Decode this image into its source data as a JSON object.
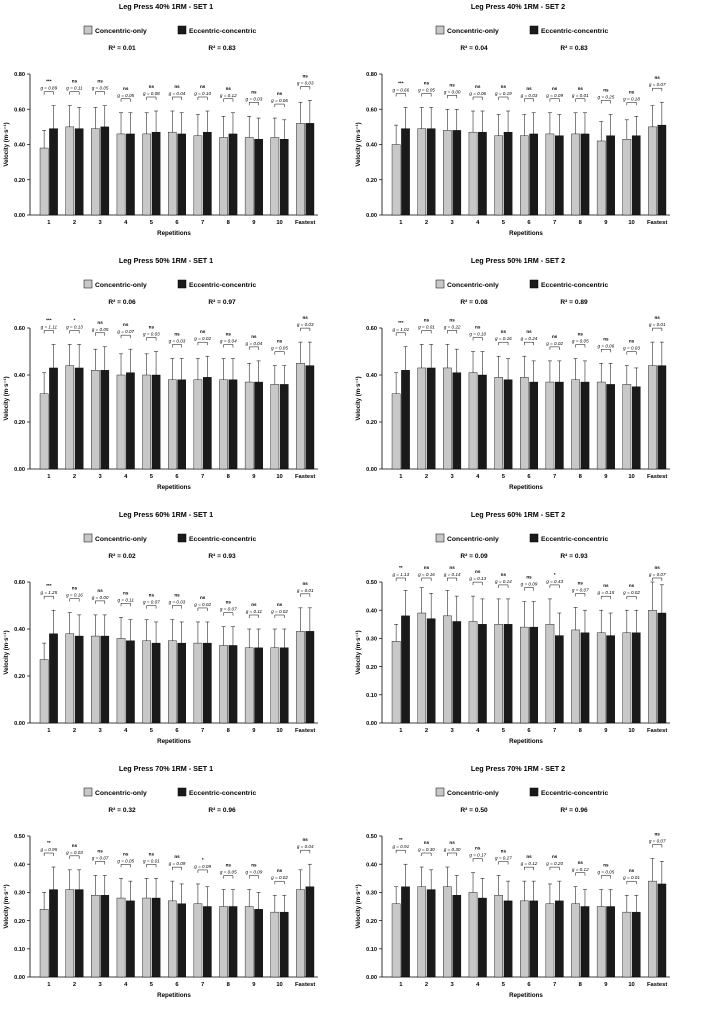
{
  "legend_labels": {
    "concentric": "Concentric-only",
    "eccentric": "Eccentric-concentric"
  },
  "colors": {
    "concentric": "#c8c8c8",
    "eccentric": "#1a1a1a",
    "axis": "#000000"
  },
  "chart_data": [
    {
      "type": "bar",
      "title": "Leg Press 40% 1RM - SET 1",
      "xlabel": "Repetitions",
      "ylabel": "Velocity (m·s⁻¹)",
      "r2_concentric": "R² = 0.01",
      "r2_eccentric": "R² = 0.83",
      "ylim": [
        0,
        0.8
      ],
      "yticks": [
        "0.00",
        "0.20",
        "0.40",
        "0.60",
        "0.80"
      ],
      "categories": [
        "1",
        "2",
        "3",
        "4",
        "5",
        "6",
        "7",
        "8",
        "9",
        "10",
        "Fastest"
      ],
      "series": [
        {
          "name": "Concentric-only",
          "values": [
            0.38,
            0.5,
            0.49,
            0.46,
            0.46,
            0.47,
            0.45,
            0.44,
            0.44,
            0.44,
            0.52
          ],
          "errors": [
            0.1,
            0.12,
            0.12,
            0.12,
            0.12,
            0.12,
            0.12,
            0.12,
            0.12,
            0.11,
            0.12
          ]
        },
        {
          "name": "Eccentric-concentric",
          "values": [
            0.49,
            0.49,
            0.5,
            0.46,
            0.47,
            0.46,
            0.47,
            0.46,
            0.43,
            0.43,
            0.52
          ],
          "errors": [
            0.13,
            0.12,
            0.12,
            0.12,
            0.12,
            0.12,
            0.12,
            0.12,
            0.12,
            0.11,
            0.13
          ]
        }
      ],
      "significance": [
        "***",
        "ns",
        "ns",
        "ns",
        "ns",
        "ns",
        "ns",
        "ns",
        "ns",
        "ns",
        "ns"
      ],
      "effect_sizes": [
        "g = 0.89",
        "g = 0.11",
        "g = 0.05",
        "g = 0.05",
        "g = 0.08",
        "g = 0.04",
        "g = 0.10",
        "g = 0.12",
        "g = 0.03",
        "g = 0.06",
        "g = 0.03"
      ]
    },
    {
      "type": "bar",
      "title": "Leg Press 40% 1RM - SET 2",
      "xlabel": "Repetitions",
      "ylabel": "Velocity (m·s⁻¹)",
      "r2_concentric": "R² = 0.04",
      "r2_eccentric": "R² = 0.83",
      "ylim": [
        0,
        0.8
      ],
      "yticks": [
        "0.00",
        "0.20",
        "0.40",
        "0.60",
        "0.80"
      ],
      "categories": [
        "1",
        "2",
        "3",
        "4",
        "5",
        "6",
        "7",
        "8",
        "9",
        "10",
        "Fastest"
      ],
      "series": [
        {
          "name": "Concentric-only",
          "values": [
            0.4,
            0.49,
            0.48,
            0.47,
            0.45,
            0.45,
            0.46,
            0.46,
            0.42,
            0.43,
            0.5
          ],
          "errors": [
            0.11,
            0.12,
            0.12,
            0.12,
            0.12,
            0.12,
            0.12,
            0.12,
            0.11,
            0.11,
            0.12
          ]
        },
        {
          "name": "Eccentric-concentric",
          "values": [
            0.49,
            0.49,
            0.48,
            0.47,
            0.47,
            0.46,
            0.45,
            0.46,
            0.45,
            0.45,
            0.51
          ],
          "errors": [
            0.12,
            0.12,
            0.12,
            0.12,
            0.12,
            0.12,
            0.12,
            0.12,
            0.12,
            0.11,
            0.13
          ]
        }
      ],
      "significance": [
        "***",
        "ns",
        "ns",
        "ns",
        "ns",
        "ns",
        "ns",
        "ns",
        "ns",
        "ns",
        "ns"
      ],
      "effect_sizes": [
        "g = 0.66",
        "g = 0.05",
        "g = 0.00",
        "g = 0.06",
        "g = 0.19",
        "g = 0.03",
        "g = 0.09",
        "g = 0.01",
        "g = 0.25",
        "g = 0.18",
        "g = 0.07"
      ]
    },
    {
      "type": "bar",
      "title": "Leg Press 50% 1RM - SET 1",
      "xlabel": "Repetitions",
      "ylabel": "Velocity (m·s⁻¹)",
      "r2_concentric": "R² = 0.06",
      "r2_eccentric": "R² = 0.97",
      "ylim": [
        0,
        0.6
      ],
      "yticks": [
        "0.00",
        "0.20",
        "0.40",
        "0.60"
      ],
      "categories": [
        "1",
        "2",
        "3",
        "4",
        "5",
        "6",
        "7",
        "8",
        "9",
        "10",
        "Fastest"
      ],
      "series": [
        {
          "name": "Concentric-only",
          "values": [
            0.32,
            0.44,
            0.42,
            0.4,
            0.4,
            0.38,
            0.38,
            0.38,
            0.37,
            0.36,
            0.45
          ],
          "errors": [
            0.09,
            0.09,
            0.09,
            0.09,
            0.09,
            0.09,
            0.09,
            0.09,
            0.08,
            0.08,
            0.09
          ]
        },
        {
          "name": "Eccentric-concentric",
          "values": [
            0.43,
            0.43,
            0.42,
            0.41,
            0.4,
            0.38,
            0.39,
            0.38,
            0.37,
            0.36,
            0.44
          ],
          "errors": [
            0.1,
            0.1,
            0.1,
            0.1,
            0.1,
            0.09,
            0.09,
            0.09,
            0.09,
            0.08,
            0.1
          ]
        }
      ],
      "significance": [
        "***",
        "*",
        "ns",
        "ns",
        "ns",
        "ns",
        "ns",
        "ns",
        "ns",
        "ns",
        "ns"
      ],
      "effect_sizes": [
        "g = 1.11",
        "g = 0.13",
        "g = 0.05",
        "g = 0.07",
        "g = 0.03",
        "g = 0.03",
        "g = 0.02",
        "g = 0.04",
        "g = 0.04",
        "g = 0.05",
        "g = 0.03"
      ]
    },
    {
      "type": "bar",
      "title": "Leg Press 50% 1RM - SET 2",
      "xlabel": "Repetitions",
      "ylabel": "Velocity (m·s⁻¹)",
      "r2_concentric": "R² = 0.08",
      "r2_eccentric": "R² = 0.89",
      "ylim": [
        0,
        0.6
      ],
      "yticks": [
        "0.00",
        "0.20",
        "0.40",
        "0.60"
      ],
      "categories": [
        "1",
        "2",
        "3",
        "4",
        "5",
        "6",
        "7",
        "8",
        "9",
        "10",
        "Fastest"
      ],
      "series": [
        {
          "name": "Concentric-only",
          "values": [
            0.32,
            0.43,
            0.43,
            0.41,
            0.39,
            0.39,
            0.37,
            0.38,
            0.37,
            0.36,
            0.44
          ],
          "errors": [
            0.09,
            0.1,
            0.1,
            0.09,
            0.09,
            0.09,
            0.09,
            0.09,
            0.08,
            0.08,
            0.1
          ]
        },
        {
          "name": "Eccentric-concentric",
          "values": [
            0.42,
            0.43,
            0.41,
            0.4,
            0.38,
            0.37,
            0.37,
            0.37,
            0.36,
            0.35,
            0.44
          ],
          "errors": [
            0.1,
            0.1,
            0.1,
            0.1,
            0.09,
            0.09,
            0.09,
            0.09,
            0.09,
            0.08,
            0.1
          ]
        }
      ],
      "significance": [
        "***",
        "ns",
        "ns",
        "ns",
        "ns",
        "ns",
        "ns",
        "ns",
        "ns",
        "ns",
        "ns"
      ],
      "effect_sizes": [
        "g = 1.01",
        "g = 0.01",
        "g = 0.22",
        "g = 0.10",
        "g = 0.16",
        "g = 0.24",
        "g = 0.02",
        "g = 0.05",
        "g = 0.06",
        "g = 0.03",
        "g = 0.01"
      ]
    },
    {
      "type": "bar",
      "title": "Leg Press 60% 1RM - SET 1",
      "xlabel": "Repetitions",
      "ylabel": "Velocity (m·s⁻¹)",
      "r2_concentric": "R² = 0.02",
      "r2_eccentric": "R² = 0.93",
      "ylim": [
        0,
        0.6
      ],
      "yticks": [
        "0.00",
        "0.20",
        "0.40",
        "0.60"
      ],
      "categories": [
        "1",
        "2",
        "3",
        "4",
        "5",
        "6",
        "7",
        "8",
        "9",
        "10",
        "Fastest"
      ],
      "series": [
        {
          "name": "Concentric-only",
          "values": [
            0.27,
            0.38,
            0.37,
            0.36,
            0.35,
            0.35,
            0.34,
            0.33,
            0.32,
            0.32,
            0.39
          ],
          "errors": [
            0.07,
            0.09,
            0.09,
            0.09,
            0.09,
            0.09,
            0.09,
            0.08,
            0.08,
            0.08,
            0.1
          ]
        },
        {
          "name": "Eccentric-concentric",
          "values": [
            0.38,
            0.37,
            0.37,
            0.35,
            0.34,
            0.34,
            0.34,
            0.33,
            0.32,
            0.32,
            0.39
          ],
          "errors": [
            0.1,
            0.09,
            0.09,
            0.09,
            0.09,
            0.09,
            0.09,
            0.08,
            0.08,
            0.08,
            0.1
          ]
        }
      ],
      "significance": [
        "***",
        "ns",
        "ns",
        "ns",
        "ns",
        "ns",
        "ns",
        "ns",
        "ns",
        "ns",
        "ns"
      ],
      "effect_sizes": [
        "g = 1.25",
        "g = 0.16",
        "g = 0.00",
        "g = 0.11",
        "g = 0.07",
        "g = 0.03",
        "g = 0.02",
        "g = 0.07",
        "g = 0.11",
        "g = 0.02",
        "g = 0.01"
      ]
    },
    {
      "type": "bar",
      "title": "Leg Press 60% 1RM - SET 2",
      "xlabel": "Repetitions",
      "ylabel": "Velocity (m·s⁻¹)",
      "r2_concentric": "R² = 0.09",
      "r2_eccentric": "R² = 0.93",
      "ylim": [
        0,
        0.5
      ],
      "yticks": [
        "0.00",
        "0.10",
        "0.20",
        "0.30",
        "0.40",
        "0.50"
      ],
      "categories": [
        "1",
        "2",
        "3",
        "4",
        "5",
        "6",
        "7",
        "8",
        "9",
        "10",
        "Fastest"
      ],
      "series": [
        {
          "name": "Concentric-only",
          "values": [
            0.29,
            0.39,
            0.38,
            0.36,
            0.35,
            0.34,
            0.35,
            0.33,
            0.32,
            0.32,
            0.4
          ],
          "errors": [
            0.06,
            0.09,
            0.09,
            0.09,
            0.09,
            0.09,
            0.09,
            0.08,
            0.08,
            0.08,
            0.1
          ]
        },
        {
          "name": "Eccentric-concentric",
          "values": [
            0.38,
            0.37,
            0.36,
            0.35,
            0.35,
            0.34,
            0.31,
            0.32,
            0.31,
            0.32,
            0.39
          ],
          "errors": [
            0.09,
            0.09,
            0.09,
            0.09,
            0.09,
            0.09,
            0.08,
            0.08,
            0.08,
            0.08,
            0.1
          ]
        }
      ],
      "significance": [
        "**",
        "ns",
        "ns",
        "ns",
        "ns",
        "ns",
        "*",
        "ns",
        "ns",
        "ns",
        "ns"
      ],
      "effect_sizes": [
        "g = 1.13",
        "g = 0.16",
        "g = 0.14",
        "g = 0.13",
        "g = 0.14",
        "g = 0.09",
        "g = 0.43",
        "g = 0.07",
        "g = 0.15",
        "g = 0.02",
        "g = 0.07"
      ]
    },
    {
      "type": "bar",
      "title": "Leg Press 70% 1RM - SET 1",
      "xlabel": "Repetitions",
      "ylabel": "Velocity (m·s⁻¹)",
      "r2_concentric": "R² = 0.32",
      "r2_eccentric": "R² = 0.96",
      "ylim": [
        0,
        0.5
      ],
      "yticks": [
        "0.00",
        "0.10",
        "0.20",
        "0.30",
        "0.40",
        "0.50"
      ],
      "categories": [
        "1",
        "2",
        "3",
        "4",
        "5",
        "6",
        "7",
        "8",
        "9",
        "10",
        "Fastest"
      ],
      "series": [
        {
          "name": "Concentric-only",
          "values": [
            0.24,
            0.31,
            0.29,
            0.28,
            0.28,
            0.27,
            0.26,
            0.25,
            0.25,
            0.23,
            0.31
          ],
          "errors": [
            0.06,
            0.07,
            0.07,
            0.07,
            0.07,
            0.07,
            0.07,
            0.06,
            0.06,
            0.06,
            0.07
          ]
        },
        {
          "name": "Eccentric-concentric",
          "values": [
            0.31,
            0.31,
            0.29,
            0.27,
            0.28,
            0.26,
            0.25,
            0.25,
            0.24,
            0.23,
            0.32
          ],
          "errors": [
            0.08,
            0.07,
            0.07,
            0.07,
            0.07,
            0.07,
            0.07,
            0.06,
            0.06,
            0.06,
            0.08
          ]
        }
      ],
      "significance": [
        "**",
        "ns",
        "ns",
        "ns",
        "ns",
        "ns",
        "*",
        "ns",
        "ns",
        "ns",
        "ns"
      ],
      "effect_sizes": [
        "g = 0.95",
        "g = 0.03",
        "g = 0.07",
        "g = 0.05",
        "g = 0.01",
        "g = 0.09",
        "g = 0.09",
        "g = 0.05",
        "g = 0.09",
        "g = 0.02",
        "g = 0.04"
      ]
    },
    {
      "type": "bar",
      "title": "Leg Press 70% 1RM - SET 2",
      "xlabel": "Repetitions",
      "ylabel": "Velocity (m·s⁻¹)",
      "r2_concentric": "R² = 0.50",
      "r2_eccentric": "R² = 0.96",
      "ylim": [
        0,
        0.5
      ],
      "yticks": [
        "0.00",
        "0.10",
        "0.20",
        "0.30",
        "0.40",
        "0.50"
      ],
      "categories": [
        "1",
        "2",
        "3",
        "4",
        "5",
        "6",
        "7",
        "8",
        "9",
        "10",
        "Fastest"
      ],
      "series": [
        {
          "name": "Concentric-only",
          "values": [
            0.26,
            0.32,
            0.32,
            0.3,
            0.29,
            0.27,
            0.26,
            0.26,
            0.25,
            0.23,
            0.34
          ],
          "errors": [
            0.06,
            0.07,
            0.07,
            0.07,
            0.07,
            0.07,
            0.07,
            0.06,
            0.06,
            0.06,
            0.08
          ]
        },
        {
          "name": "Eccentric-concentric",
          "values": [
            0.32,
            0.31,
            0.29,
            0.28,
            0.27,
            0.27,
            0.27,
            0.25,
            0.25,
            0.23,
            0.33
          ],
          "errors": [
            0.08,
            0.07,
            0.07,
            0.07,
            0.07,
            0.07,
            0.07,
            0.06,
            0.06,
            0.06,
            0.08
          ]
        }
      ],
      "significance": [
        "**",
        "ns",
        "ns",
        "ns",
        "ns",
        "ns",
        "ns",
        "ns",
        "ns",
        "ns",
        "ns"
      ],
      "effect_sizes": [
        "g = 0.91",
        "g = 0.30",
        "g = 0.30",
        "g = 0.17",
        "g = 0.27",
        "g = 0.12",
        "g = 0.20",
        "g = 0.12",
        "g = 0.05",
        "g = 0.01",
        "g = 0.07"
      ]
    }
  ]
}
